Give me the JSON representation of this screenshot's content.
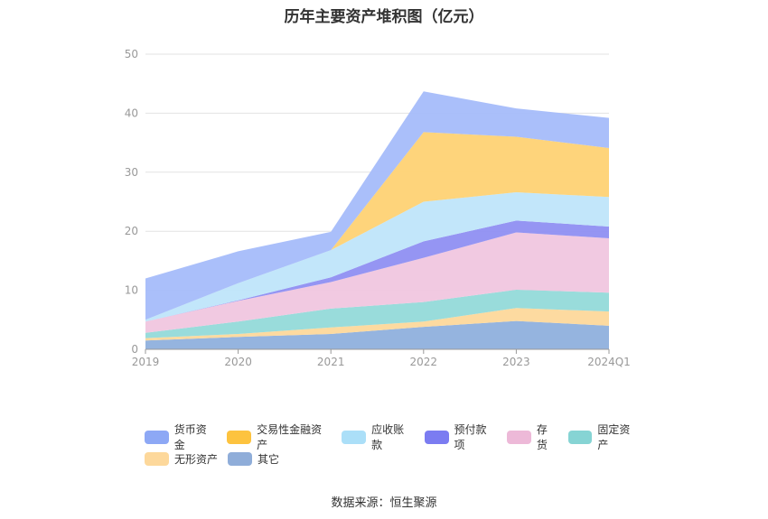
{
  "chart_data": {
    "type": "area",
    "stacked": true,
    "title": "历年主要资产堆积图（亿元）",
    "categories": [
      "2019",
      "2020",
      "2021",
      "2022",
      "2023",
      "2024Q1"
    ],
    "ylim": [
      0,
      50
    ],
    "yticks": [
      0,
      10,
      20,
      30,
      40,
      50
    ],
    "grid": true,
    "legend_position": "bottom",
    "series": [
      {
        "name": "其它",
        "color": "#8fb0dd",
        "values": [
          1.5,
          2.1,
          2.6,
          3.8,
          4.8,
          4.0
        ]
      },
      {
        "name": "无形资产",
        "color": "#fdd89b",
        "values": [
          0.4,
          0.5,
          1.1,
          0.9,
          2.2,
          2.4
        ]
      },
      {
        "name": "固定资产",
        "color": "#94dad9",
        "values": [
          0.9,
          2.1,
          3.2,
          3.3,
          3.1,
          3.2
        ]
      },
      {
        "name": "存货",
        "color": "#f0c6df",
        "values": [
          1.9,
          3.5,
          4.5,
          7.5,
          9.7,
          9.2
        ]
      },
      {
        "name": "预付款项",
        "color": "#8f8ff2",
        "values": [
          0.0,
          0.1,
          0.8,
          2.8,
          2.0,
          2.0
        ]
      },
      {
        "name": "应收账款",
        "color": "#bfe5fa",
        "values": [
          0.3,
          2.9,
          4.6,
          6.7,
          4.8,
          5.0
        ]
      },
      {
        "name": "交易性金融资产",
        "color": "#fed274",
        "values": [
          0.0,
          0.0,
          0.0,
          11.8,
          9.4,
          8.3
        ]
      },
      {
        "name": "货币资金",
        "color": "#a5bcfa",
        "values": [
          7.0,
          5.4,
          3.1,
          6.9,
          4.8,
          5.1
        ]
      }
    ],
    "legend": [
      {
        "name": "货币资金",
        "color": "#8da8f5"
      },
      {
        "name": "交易性金融资产",
        "color": "#fdc33f"
      },
      {
        "name": "应收账款",
        "color": "#abdff8"
      },
      {
        "name": "预付款项",
        "color": "#7b7cf1"
      },
      {
        "name": "存货",
        "color": "#edb9d8"
      },
      {
        "name": "固定资产",
        "color": "#86d4d4"
      },
      {
        "name": "无形资产",
        "color": "#fdd89b"
      },
      {
        "name": "其它",
        "color": "#8fadd9"
      }
    ]
  },
  "source": "数据来源：恒生聚源"
}
